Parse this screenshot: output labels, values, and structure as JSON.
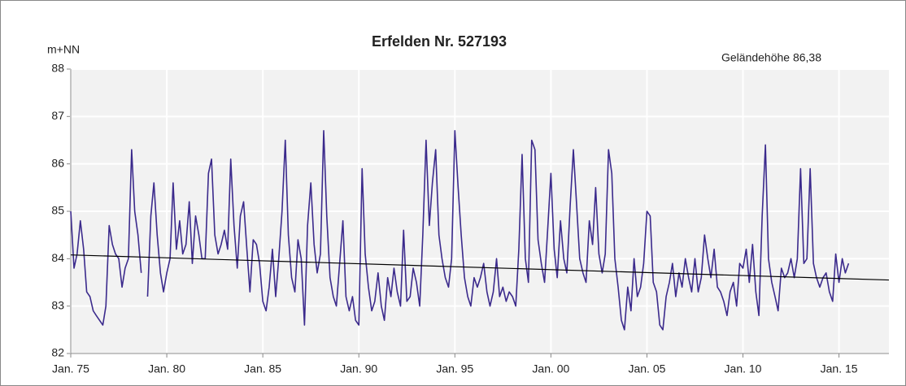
{
  "chart_data": {
    "type": "line",
    "title": "Erfelden  Nr. 527193",
    "y_label": "m+NN",
    "annotation": "Geländehöhe 86,38",
    "annotation_color": "#3a9a3a",
    "grid": true,
    "xlim": [
      1975,
      2017.6
    ],
    "ylim": [
      82,
      88
    ],
    "yticks": [
      82,
      83,
      84,
      85,
      86,
      87,
      88
    ],
    "xticks": [
      {
        "value": 1975,
        "label": "Jan. 75"
      },
      {
        "value": 1980,
        "label": "Jan. 80"
      },
      {
        "value": 1985,
        "label": "Jan. 85"
      },
      {
        "value": 1990,
        "label": "Jan. 90"
      },
      {
        "value": 1995,
        "label": "Jan. 95"
      },
      {
        "value": 2000,
        "label": "Jan. 00"
      },
      {
        "value": 2005,
        "label": "Jan. 05"
      },
      {
        "value": 2010,
        "label": "Jan. 10"
      },
      {
        "value": 2015,
        "label": "Jan. 15"
      }
    ],
    "series": [
      {
        "color": "#3b2a8c",
        "x": [
          1975,
          1975.17,
          1975.33,
          1975.5,
          1975.67,
          1975.83,
          1976,
          1976.17,
          1976.33,
          1976.5,
          1976.67,
          1976.83,
          1977,
          1977.17,
          1977.33,
          1977.5,
          1977.67,
          1977.83,
          1978,
          1978.17,
          1978.33,
          1978.5,
          1978.67,
          1978.83,
          1979,
          1979.17,
          1979.33,
          1979.5,
          1979.67,
          1979.83,
          1980,
          1980.17,
          1980.33,
          1980.5,
          1980.67,
          1980.83,
          1981,
          1981.17,
          1981.33,
          1981.5,
          1981.67,
          1981.83,
          1982,
          1982.17,
          1982.33,
          1982.5,
          1982.67,
          1982.83,
          1983,
          1983.17,
          1983.33,
          1983.5,
          1983.67,
          1983.83,
          1984,
          1984.17,
          1984.33,
          1984.5,
          1984.67,
          1984.83,
          1985,
          1985.17,
          1985.33,
          1985.5,
          1985.67,
          1985.83,
          1986,
          1986.17,
          1986.33,
          1986.5,
          1986.67,
          1986.83,
          1987,
          1987.17,
          1987.33,
          1987.5,
          1987.67,
          1987.83,
          1988,
          1988.17,
          1988.33,
          1988.5,
          1988.67,
          1988.83,
          1989,
          1989.17,
          1989.33,
          1989.5,
          1989.67,
          1989.83,
          1990,
          1990.17,
          1990.33,
          1990.5,
          1990.67,
          1990.83,
          1991,
          1991.17,
          1991.33,
          1991.5,
          1991.67,
          1991.83,
          1992,
          1992.17,
          1992.33,
          1992.5,
          1992.67,
          1992.83,
          1993,
          1993.17,
          1993.33,
          1993.5,
          1993.67,
          1993.83,
          1994,
          1994.17,
          1994.33,
          1994.5,
          1994.67,
          1994.83,
          1995,
          1995.17,
          1995.33,
          1995.5,
          1995.67,
          1995.83,
          1996,
          1996.17,
          1996.33,
          1996.5,
          1996.67,
          1996.83,
          1997,
          1997.17,
          1997.33,
          1997.5,
          1997.67,
          1997.83,
          1998,
          1998.17,
          1998.33,
          1998.5,
          1998.67,
          1998.83,
          1999,
          1999.17,
          1999.33,
          1999.5,
          1999.67,
          1999.83,
          2000,
          2000.17,
          2000.33,
          2000.5,
          2000.67,
          2000.83,
          2001,
          2001.17,
          2001.33,
          2001.5,
          2001.67,
          2001.83,
          2002,
          2002.17,
          2002.33,
          2002.5,
          2002.67,
          2002.83,
          2003,
          2003.17,
          2003.33,
          2003.5,
          2003.67,
          2003.83,
          2004,
          2004.17,
          2004.33,
          2004.5,
          2004.67,
          2004.83,
          2005,
          2005.17,
          2005.33,
          2005.5,
          2005.67,
          2005.83,
          2006,
          2006.17,
          2006.33,
          2006.5,
          2006.67,
          2006.83,
          2007,
          2007.17,
          2007.33,
          2007.5,
          2007.67,
          2007.83,
          2008,
          2008.17,
          2008.33,
          2008.5,
          2008.67,
          2008.83,
          2009,
          2009.17,
          2009.33,
          2009.5,
          2009.67,
          2009.83,
          2010,
          2010.17,
          2010.33,
          2010.5,
          2010.67,
          2010.83,
          2011,
          2011.17,
          2011.33,
          2011.5,
          2011.67,
          2011.83,
          2012,
          2012.17,
          2012.33,
          2012.5,
          2012.67,
          2012.83,
          2013,
          2013.17,
          2013.33,
          2013.5,
          2013.67,
          2013.83,
          2014,
          2014.17,
          2014.33,
          2014.5,
          2014.67,
          2014.83,
          2015,
          2015.17,
          2015.33,
          2015.5
        ],
        "values": [
          85.0,
          83.8,
          84.1,
          84.8,
          84.2,
          83.3,
          83.2,
          82.9,
          82.8,
          82.7,
          82.6,
          83.0,
          84.7,
          84.3,
          84.1,
          84.0,
          83.4,
          83.8,
          84.0,
          86.3,
          85.0,
          84.5,
          83.7,
          null,
          83.2,
          84.9,
          85.6,
          84.5,
          83.7,
          83.3,
          83.7,
          84.0,
          85.6,
          84.2,
          84.8,
          84.1,
          84.3,
          85.2,
          83.9,
          84.9,
          84.5,
          84.0,
          84.0,
          85.8,
          86.1,
          84.5,
          84.1,
          84.3,
          84.6,
          84.2,
          86.1,
          84.7,
          83.8,
          84.9,
          85.2,
          84.2,
          83.3,
          84.4,
          84.3,
          83.9,
          83.1,
          82.9,
          83.4,
          84.2,
          83.2,
          84.0,
          85.0,
          86.5,
          84.5,
          83.6,
          83.3,
          84.4,
          84.0,
          82.6,
          84.7,
          85.6,
          84.3,
          83.7,
          84.1,
          86.7,
          84.9,
          83.6,
          83.2,
          83.0,
          83.9,
          84.8,
          83.2,
          82.9,
          83.2,
          82.7,
          82.6,
          85.9,
          84.1,
          83.4,
          82.9,
          83.1,
          83.7,
          83.0,
          82.7,
          83.6,
          83.2,
          83.8,
          83.3,
          83.0,
          84.6,
          83.1,
          83.2,
          83.8,
          83.5,
          83.0,
          84.5,
          86.5,
          84.7,
          85.6,
          86.3,
          84.5,
          84.0,
          83.6,
          83.4,
          84.0,
          86.7,
          85.5,
          84.5,
          83.6,
          83.2,
          83.0,
          83.6,
          83.4,
          83.6,
          83.9,
          83.3,
          83.0,
          83.3,
          84.0,
          83.2,
          83.4,
          83.1,
          83.3,
          83.2,
          83.0,
          84.2,
          86.2,
          84.0,
          83.5,
          86.5,
          86.3,
          84.4,
          83.9,
          83.5,
          84.6,
          85.8,
          84.2,
          83.6,
          84.8,
          84.0,
          83.7,
          85.1,
          86.3,
          85.2,
          84.0,
          83.7,
          83.5,
          84.8,
          84.3,
          85.5,
          84.1,
          83.7,
          84.1,
          86.3,
          85.8,
          84.0,
          83.4,
          82.7,
          82.5,
          83.4,
          82.9,
          84.0,
          83.2,
          83.4,
          83.9,
          85.0,
          84.9,
          83.5,
          83.3,
          82.6,
          82.5,
          83.2,
          83.5,
          83.9,
          83.2,
          83.7,
          83.4,
          84.0,
          83.6,
          83.3,
          84.0,
          83.3,
          83.6,
          84.5,
          84.0,
          83.6,
          84.2,
          83.4,
          83.3,
          83.1,
          82.8,
          83.3,
          83.5,
          83.0,
          83.9,
          83.8,
          84.2,
          83.5,
          84.3,
          83.3,
          82.8,
          84.9,
          86.4,
          84.0,
          83.5,
          83.2,
          82.9,
          83.8,
          83.6,
          83.7,
          84.0,
          83.6,
          84.0,
          85.9,
          83.9,
          84.0,
          85.9,
          83.9,
          83.6,
          83.4,
          83.6,
          83.7,
          83.3,
          83.1,
          84.1,
          83.5,
          84.0,
          83.7,
          83.9
        ]
      },
      {
        "color": "#000000",
        "x": [
          1975,
          2017.6
        ],
        "values": [
          84.08,
          83.55
        ]
      }
    ]
  }
}
